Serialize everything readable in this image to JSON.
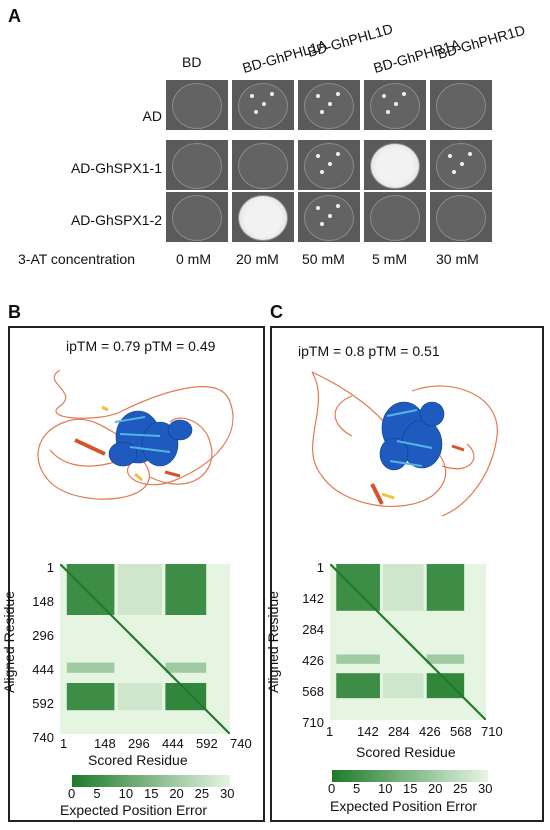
{
  "panels": {
    "a": "A",
    "b": "B",
    "c": "C"
  },
  "panel_a": {
    "columns": [
      "BD",
      "BD-GhPHL1A",
      "BD-GhPHL1D",
      "BD-GhPHR1A",
      "BD-GhPHR1D"
    ],
    "rows": [
      "AD",
      "AD-GhSPX1-1",
      "AD-GhSPX1-2"
    ],
    "concentration_label": "3-AT concentration",
    "concentrations": [
      "0 mM",
      "20 mM",
      "50 mM",
      "5 mM",
      "30 mM"
    ]
  },
  "panel_b": {
    "metric": "ipTM = 0.79 pTM = 0.49",
    "ylabel": "Aligned Residue",
    "xlabel": "Scored Residue",
    "y_ticks": [
      "1",
      "148",
      "296",
      "444",
      "592",
      "740"
    ],
    "x_ticks": [
      "1",
      "148",
      "296",
      "444",
      "592",
      "740"
    ]
  },
  "panel_c": {
    "metric": "ipTM = 0.8 pTM = 0.51",
    "ylabel": "Aligned Residue",
    "xlabel": "Scored Residue",
    "y_ticks": [
      "1",
      "142",
      "284",
      "426",
      "568",
      "710"
    ],
    "x_ticks": [
      "1",
      "142",
      "284",
      "426",
      "568",
      "710"
    ]
  },
  "colorbar": {
    "ticks": [
      "0",
      "5",
      "10",
      "15",
      "20",
      "25",
      "30"
    ],
    "label": "Expected Position Error",
    "color_low": "#1e7a2a",
    "color_high": "#e6f5e2"
  }
}
